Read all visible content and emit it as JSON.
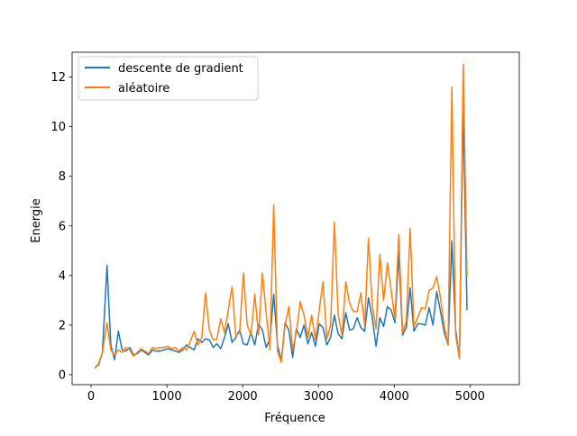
{
  "chart_data": {
    "type": "line",
    "title": "",
    "xlabel": "Fréquence",
    "ylabel": "Energie",
    "xlim": [
      -250,
      5650
    ],
    "ylim": [
      -0.4,
      13.0
    ],
    "xticks": [
      0,
      1000,
      2000,
      3000,
      4000,
      5000
    ],
    "yticks": [
      0,
      2,
      4,
      6,
      8,
      10,
      12
    ],
    "grid": false,
    "legend": "upper-left",
    "series": [
      {
        "name": "descente de gradient",
        "color": "#1f77b4",
        "points": [
          [
            50,
            0.3
          ],
          [
            100,
            0.4
          ],
          [
            150,
            0.9
          ],
          [
            210,
            4.4
          ],
          [
            260,
            1.2
          ],
          [
            310,
            0.6
          ],
          [
            360,
            1.75
          ],
          [
            410,
            1.0
          ],
          [
            460,
            0.95
          ],
          [
            510,
            1.1
          ],
          [
            560,
            0.8
          ],
          [
            610,
            0.85
          ],
          [
            660,
            1.0
          ],
          [
            710,
            0.9
          ],
          [
            760,
            0.8
          ],
          [
            810,
            1.0
          ],
          [
            860,
            0.95
          ],
          [
            910,
            0.95
          ],
          [
            960,
            1.0
          ],
          [
            1010,
            1.05
          ],
          [
            1060,
            1.0
          ],
          [
            1110,
            0.95
          ],
          [
            1160,
            0.9
          ],
          [
            1210,
            1.0
          ],
          [
            1260,
            1.2
          ],
          [
            1310,
            1.1
          ],
          [
            1360,
            1.0
          ],
          [
            1410,
            1.45
          ],
          [
            1460,
            1.3
          ],
          [
            1510,
            1.45
          ],
          [
            1560,
            1.4
          ],
          [
            1610,
            1.1
          ],
          [
            1660,
            1.25
          ],
          [
            1710,
            1.05
          ],
          [
            1760,
            1.5
          ],
          [
            1810,
            2.05
          ],
          [
            1860,
            1.3
          ],
          [
            1910,
            1.5
          ],
          [
            1960,
            1.8
          ],
          [
            2010,
            1.25
          ],
          [
            2060,
            1.2
          ],
          [
            2110,
            1.7
          ],
          [
            2160,
            1.2
          ],
          [
            2210,
            2.05
          ],
          [
            2260,
            1.8
          ],
          [
            2310,
            1.1
          ],
          [
            2360,
            1.45
          ],
          [
            2410,
            3.25
          ],
          [
            2460,
            1.2
          ],
          [
            2510,
            0.55
          ],
          [
            2560,
            2.1
          ],
          [
            2610,
            1.8
          ],
          [
            2660,
            0.7
          ],
          [
            2710,
            1.85
          ],
          [
            2760,
            1.5
          ],
          [
            2810,
            2.0
          ],
          [
            2860,
            1.25
          ],
          [
            2910,
            1.7
          ],
          [
            2960,
            1.15
          ],
          [
            3010,
            2.05
          ],
          [
            3060,
            1.9
          ],
          [
            3110,
            1.2
          ],
          [
            3160,
            1.5
          ],
          [
            3210,
            2.4
          ],
          [
            3260,
            1.65
          ],
          [
            3310,
            1.45
          ],
          [
            3360,
            2.5
          ],
          [
            3410,
            1.8
          ],
          [
            3460,
            1.85
          ],
          [
            3510,
            2.3
          ],
          [
            3560,
            1.9
          ],
          [
            3610,
            1.75
          ],
          [
            3660,
            3.1
          ],
          [
            3710,
            2.3
          ],
          [
            3760,
            1.15
          ],
          [
            3810,
            2.3
          ],
          [
            3860,
            1.95
          ],
          [
            3910,
            2.75
          ],
          [
            3960,
            2.6
          ],
          [
            4010,
            2.1
          ],
          [
            4060,
            4.9
          ],
          [
            4110,
            1.6
          ],
          [
            4160,
            1.9
          ],
          [
            4210,
            3.5
          ],
          [
            4260,
            1.75
          ],
          [
            4310,
            2.05
          ],
          [
            4360,
            2.05
          ],
          [
            4410,
            2.0
          ],
          [
            4460,
            2.7
          ],
          [
            4510,
            2.0
          ],
          [
            4560,
            3.35
          ],
          [
            4610,
            2.55
          ],
          [
            4660,
            1.7
          ],
          [
            4710,
            1.2
          ],
          [
            4760,
            5.4
          ],
          [
            4810,
            1.8
          ],
          [
            4860,
            0.7
          ],
          [
            4910,
            10.8
          ],
          [
            4960,
            2.6
          ]
        ]
      },
      {
        "name": "aléatoire",
        "color": "#ff7f0e",
        "points": [
          [
            50,
            0.25
          ],
          [
            100,
            0.45
          ],
          [
            150,
            0.9
          ],
          [
            210,
            2.1
          ],
          [
            260,
            1.0
          ],
          [
            310,
            0.8
          ],
          [
            360,
            1.0
          ],
          [
            410,
            0.9
          ],
          [
            460,
            1.1
          ],
          [
            510,
            1.0
          ],
          [
            560,
            0.75
          ],
          [
            610,
            0.9
          ],
          [
            660,
            1.05
          ],
          [
            710,
            0.95
          ],
          [
            760,
            0.85
          ],
          [
            810,
            1.1
          ],
          [
            860,
            1.05
          ],
          [
            910,
            1.1
          ],
          [
            960,
            1.1
          ],
          [
            1010,
            1.15
          ],
          [
            1060,
            1.05
          ],
          [
            1110,
            1.1
          ],
          [
            1160,
            0.95
          ],
          [
            1210,
            1.1
          ],
          [
            1260,
            1.0
          ],
          [
            1310,
            1.35
          ],
          [
            1360,
            1.75
          ],
          [
            1410,
            1.2
          ],
          [
            1460,
            1.5
          ],
          [
            1510,
            3.3
          ],
          [
            1560,
            1.8
          ],
          [
            1610,
            1.4
          ],
          [
            1660,
            1.45
          ],
          [
            1710,
            2.25
          ],
          [
            1760,
            1.7
          ],
          [
            1810,
            2.6
          ],
          [
            1860,
            3.55
          ],
          [
            1910,
            1.55
          ],
          [
            1960,
            1.7
          ],
          [
            2010,
            4.1
          ],
          [
            2060,
            2.0
          ],
          [
            2110,
            1.6
          ],
          [
            2160,
            3.25
          ],
          [
            2210,
            1.6
          ],
          [
            2260,
            4.1
          ],
          [
            2310,
            2.5
          ],
          [
            2360,
            1.0
          ],
          [
            2410,
            6.85
          ],
          [
            2460,
            0.95
          ],
          [
            2510,
            0.5
          ],
          [
            2560,
            2.0
          ],
          [
            2610,
            2.75
          ],
          [
            2660,
            1.0
          ],
          [
            2710,
            1.7
          ],
          [
            2760,
            2.95
          ],
          [
            2810,
            2.4
          ],
          [
            2860,
            1.5
          ],
          [
            2910,
            2.4
          ],
          [
            2960,
            1.4
          ],
          [
            3010,
            2.6
          ],
          [
            3060,
            3.75
          ],
          [
            3110,
            1.45
          ],
          [
            3160,
            2.0
          ],
          [
            3210,
            6.15
          ],
          [
            3260,
            2.45
          ],
          [
            3310,
            1.6
          ],
          [
            3360,
            3.75
          ],
          [
            3410,
            2.9
          ],
          [
            3460,
            2.55
          ],
          [
            3510,
            2.55
          ],
          [
            3560,
            3.3
          ],
          [
            3610,
            2.0
          ],
          [
            3660,
            5.5
          ],
          [
            3710,
            2.8
          ],
          [
            3760,
            1.85
          ],
          [
            3810,
            4.85
          ],
          [
            3860,
            3.0
          ],
          [
            3910,
            4.5
          ],
          [
            3960,
            3.4
          ],
          [
            4010,
            2.25
          ],
          [
            4060,
            5.65
          ],
          [
            4110,
            1.7
          ],
          [
            4160,
            2.15
          ],
          [
            4210,
            5.9
          ],
          [
            4260,
            1.95
          ],
          [
            4310,
            2.3
          ],
          [
            4360,
            2.7
          ],
          [
            4410,
            2.65
          ],
          [
            4460,
            3.4
          ],
          [
            4510,
            3.5
          ],
          [
            4560,
            3.95
          ],
          [
            4610,
            3.1
          ],
          [
            4660,
            1.95
          ],
          [
            4710,
            1.2
          ],
          [
            4760,
            11.6
          ],
          [
            4810,
            1.6
          ],
          [
            4860,
            0.65
          ],
          [
            4910,
            12.5
          ],
          [
            4960,
            3.95
          ]
        ]
      }
    ]
  }
}
